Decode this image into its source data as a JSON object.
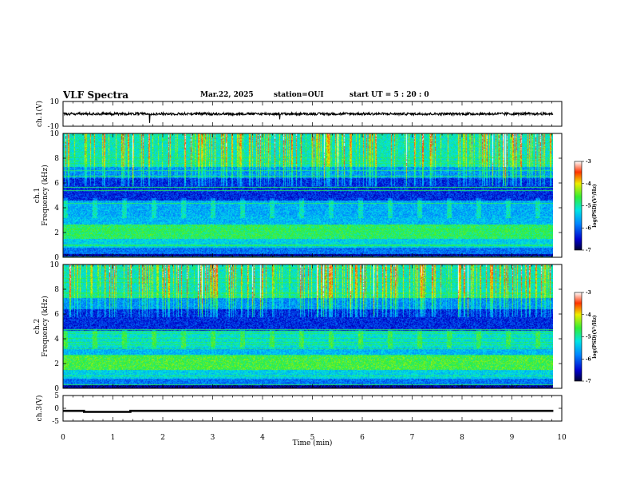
{
  "header": {
    "title": "VLF Spectra",
    "date": "Mar.22, 2025",
    "station": "station=OUI",
    "start_ut": "start UT =  5 : 20 : 0"
  },
  "chart_data": [
    {
      "type": "line",
      "panel": "ch1-waveform",
      "ylabel": "ch.1(V)",
      "ylim": [
        -10,
        10
      ],
      "yticks": [
        "10",
        "-10"
      ],
      "xlim": [
        0,
        10
      ],
      "description_values": {
        "mean_V": 0.0,
        "noise_amplitude_V": 1.0,
        "data_end_min": 9.83
      }
    },
    {
      "type": "heatmap",
      "panel": "ch1-spectrogram",
      "ylabel_line1": "ch.1",
      "ylabel_line2": "Frequency (kHz)",
      "ylim": [
        0,
        10
      ],
      "yticks": [
        "0",
        "2",
        "4",
        "6",
        "8",
        "10"
      ],
      "xlim": [
        0,
        10
      ],
      "data_end_min": 9.83,
      "colorbar": {
        "label": "log(PSD)(V²/Hz)",
        "range": [
          -7,
          -3
        ],
        "ticks": [
          "-3",
          "-4",
          "-5",
          "-6",
          "-7"
        ]
      }
    },
    {
      "type": "heatmap",
      "panel": "ch2-spectrogram",
      "ylabel_line1": "ch.2",
      "ylabel_line2": "Frequency (kHz)",
      "ylim": [
        0,
        10
      ],
      "yticks": [
        "0",
        "2",
        "4",
        "6",
        "8",
        "10"
      ],
      "xlim": [
        0,
        10
      ],
      "data_end_min": 9.83,
      "colorbar": {
        "label": "log(PSD)(V²/Hz)",
        "range": [
          -7,
          -3
        ],
        "ticks": [
          "-3",
          "-4",
          "-5",
          "-6",
          "-7"
        ]
      }
    },
    {
      "type": "line",
      "panel": "ch3-level",
      "ylabel": "ch.3(V)",
      "ylim": [
        -5,
        5
      ],
      "yticks": [
        "5",
        "0",
        "-5"
      ],
      "xlim": [
        0,
        10
      ],
      "x": [
        0,
        0.42,
        0.42,
        1.35,
        1.35,
        9.83
      ],
      "y": [
        -1.0,
        -1.0,
        -1.4,
        -1.4,
        -1.0,
        -1.0
      ]
    }
  ],
  "xaxis": {
    "label": "Time (min)",
    "ticks": [
      "0",
      "1",
      "2",
      "3",
      "4",
      "5",
      "6",
      "7",
      "8",
      "9",
      "10"
    ],
    "range": [
      0,
      10
    ]
  }
}
